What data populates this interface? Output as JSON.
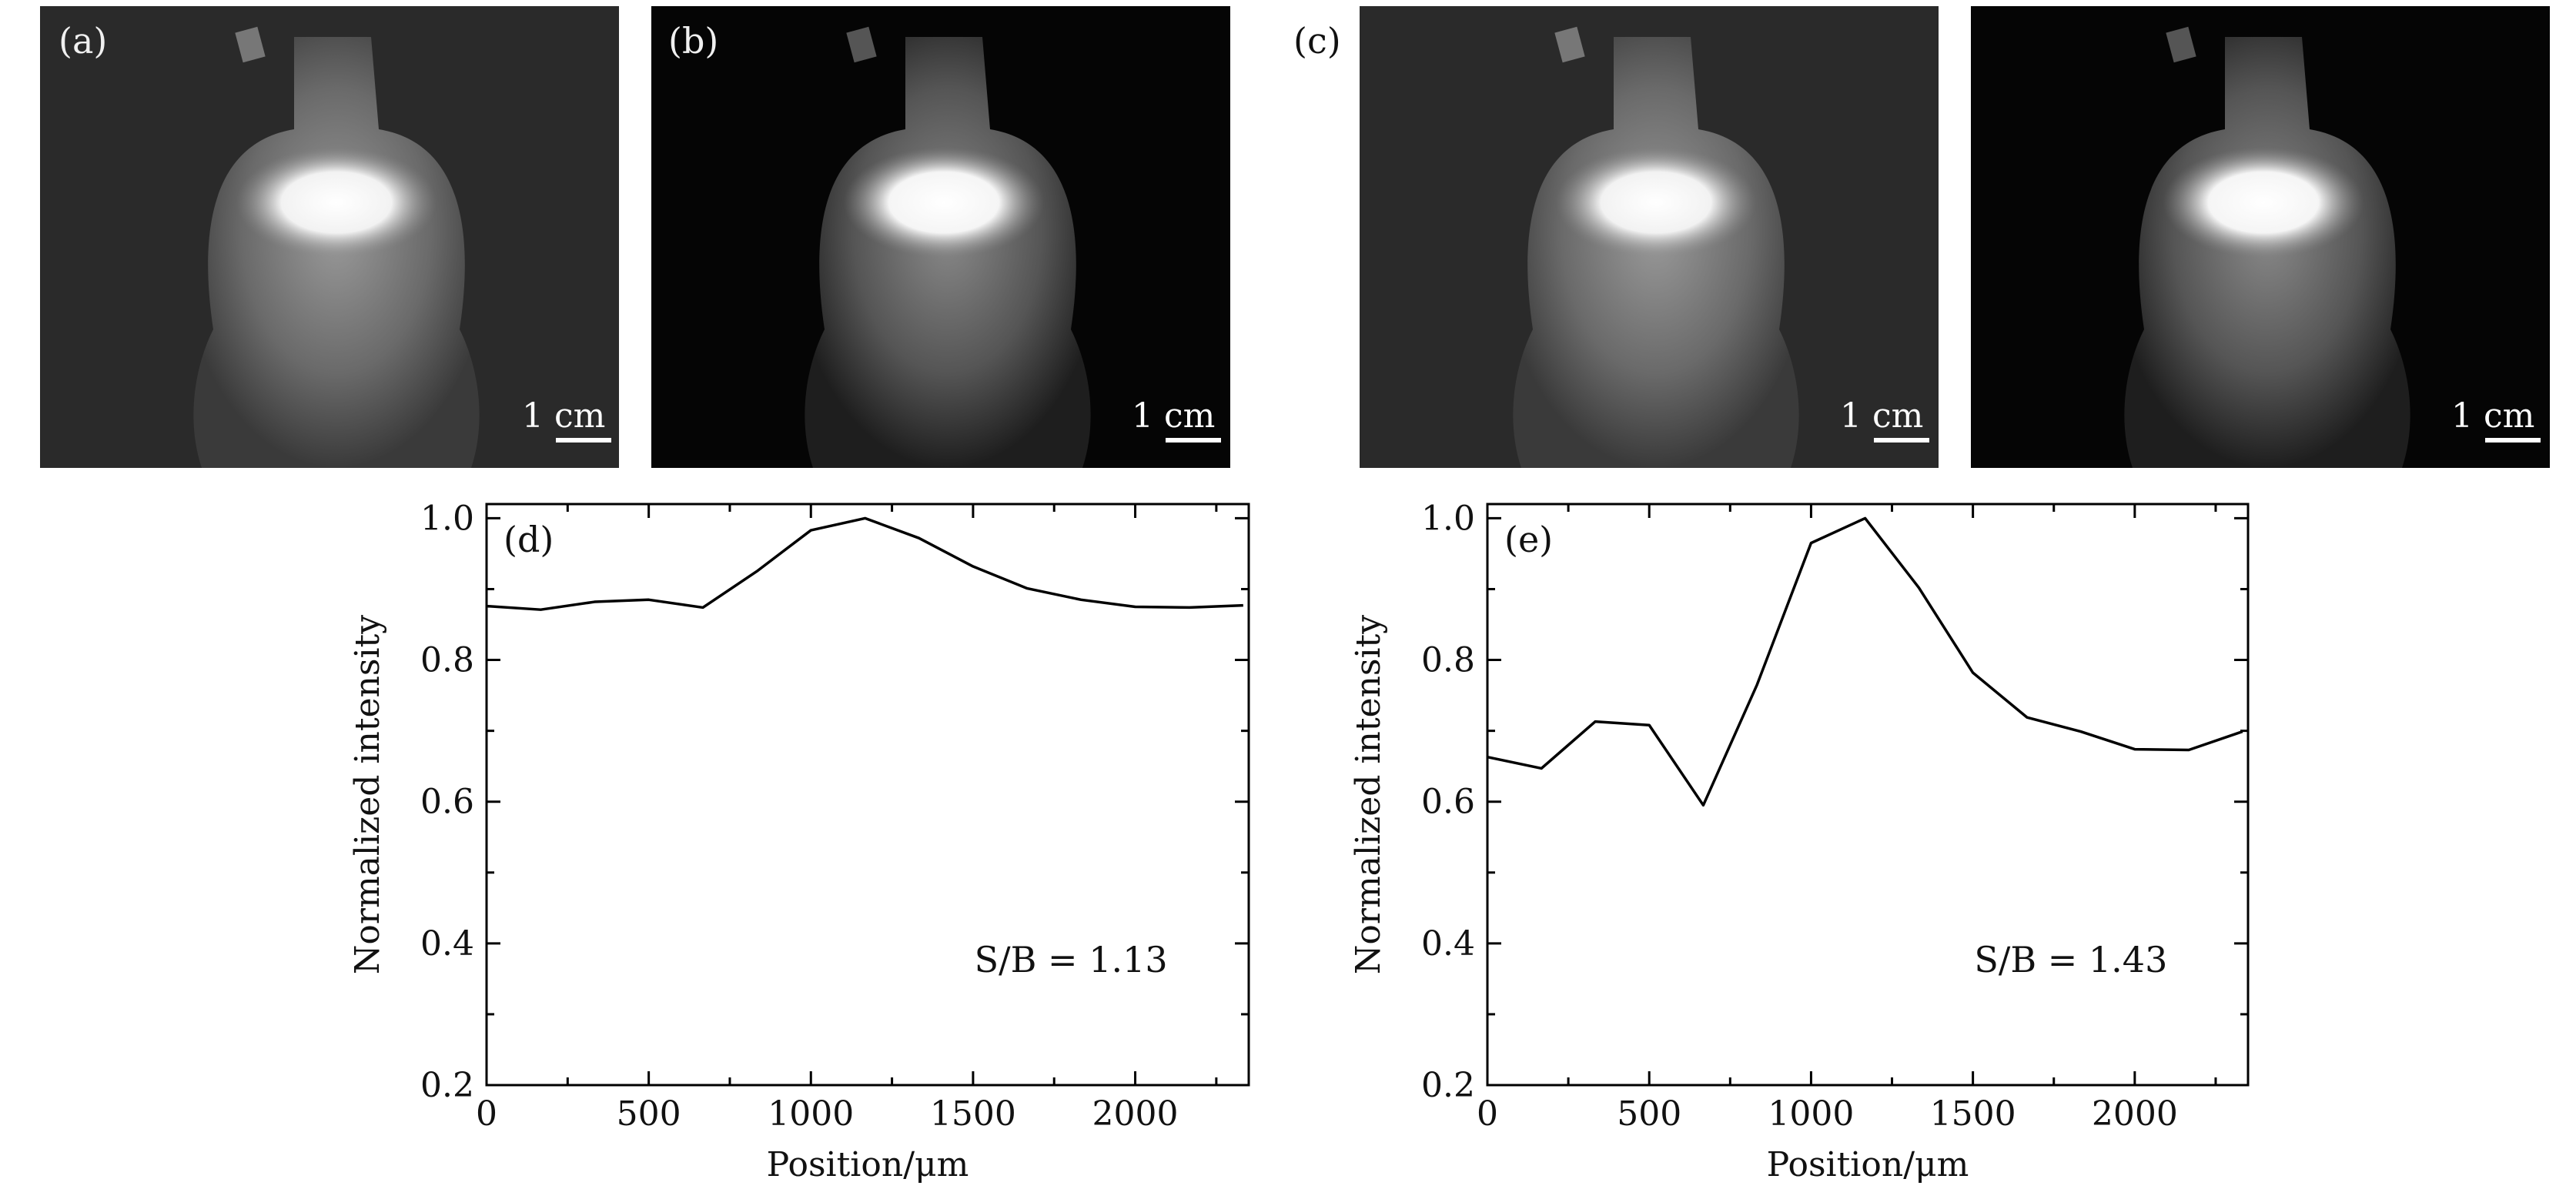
{
  "images": [
    {
      "label": "(a)",
      "scale_bar": "1 cm"
    },
    {
      "label": "(b)",
      "scale_bar": "1 cm"
    },
    {
      "label": "(c)",
      "scale_bar": "1 cm"
    },
    {
      "label": "",
      "scale_bar": "1 cm"
    }
  ],
  "colors": {
    "line": "#000000",
    "photo_bg_a": "#2a2a2a",
    "photo_bg_b": "#050505",
    "glow": "#ffffff"
  },
  "chart_data": [
    {
      "type": "line",
      "panel_label": "(d)",
      "annotation": "S/B = 1.13",
      "xlabel": "Position/μm",
      "ylabel": "Normalized intensity",
      "xlim": [
        0,
        2350
      ],
      "ylim": [
        0.2,
        1.02
      ],
      "xticks": [
        0,
        500,
        1000,
        1500,
        2000
      ],
      "yticks": [
        0.2,
        0.4,
        0.6,
        0.8,
        1.0
      ],
      "series": [
        {
          "x": [
            0,
            167,
            333,
            500,
            667,
            833,
            1000,
            1167,
            1333,
            1500,
            1667,
            1833,
            2000,
            2167,
            2333
          ],
          "y": [
            0.876,
            0.871,
            0.882,
            0.885,
            0.874,
            0.925,
            0.983,
            1.0,
            0.972,
            0.932,
            0.901,
            0.885,
            0.875,
            0.874,
            0.877
          ]
        }
      ]
    },
    {
      "type": "line",
      "panel_label": "(e)",
      "annotation": "S/B = 1.43",
      "xlabel": "Position/μm",
      "ylabel": "Normalized intensity",
      "xlim": [
        0,
        2350
      ],
      "ylim": [
        0.2,
        1.02
      ],
      "xticks": [
        0,
        500,
        1000,
        1500,
        2000
      ],
      "yticks": [
        0.2,
        0.4,
        0.6,
        0.8,
        1.0
      ],
      "series": [
        {
          "x": [
            0,
            167,
            333,
            500,
            667,
            833,
            1000,
            1167,
            1333,
            1500,
            1667,
            1833,
            2000,
            2167,
            2333
          ],
          "y": [
            0.663,
            0.647,
            0.713,
            0.708,
            0.595,
            0.765,
            0.965,
            1.0,
            0.902,
            0.782,
            0.719,
            0.699,
            0.674,
            0.673,
            0.699
          ]
        }
      ]
    }
  ]
}
